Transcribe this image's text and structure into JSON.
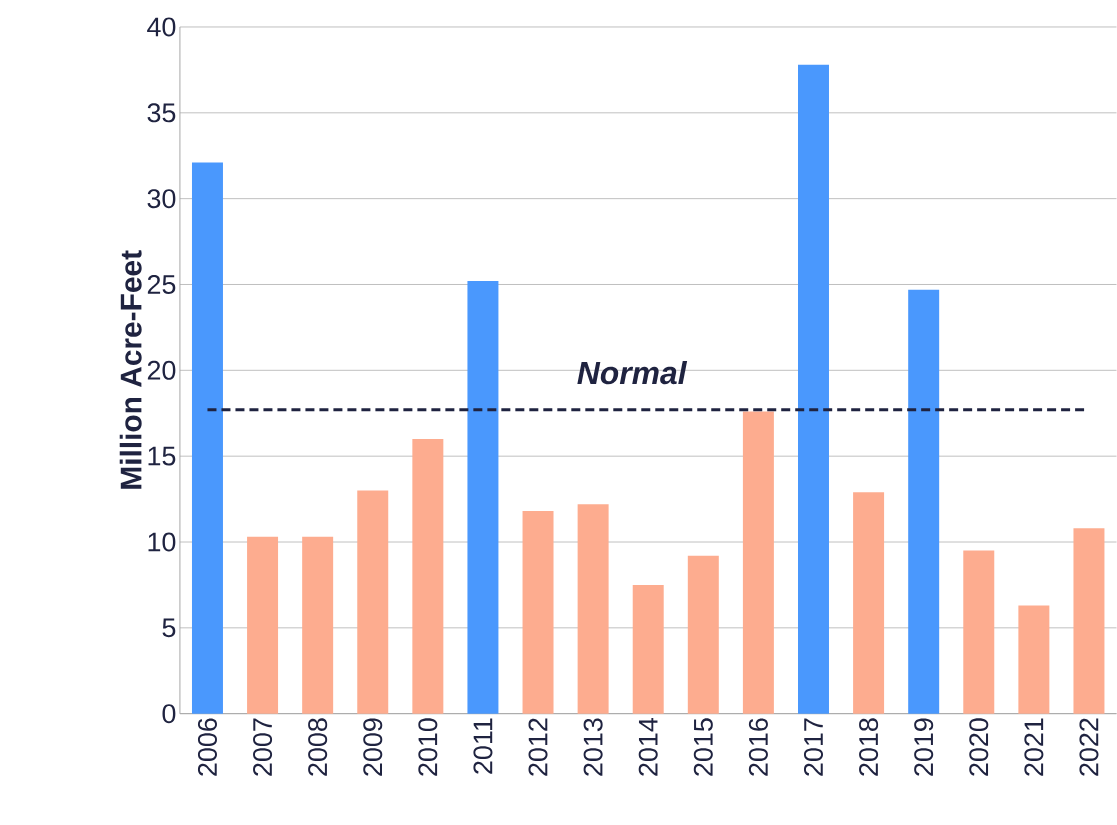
{
  "chart_data": {
    "type": "bar",
    "ylabel": "Million Acre-Feet",
    "categories": [
      "2006",
      "2007",
      "2008",
      "2009",
      "2010",
      "2011",
      "2012",
      "2013",
      "2014",
      "2015",
      "2016",
      "2017",
      "2018",
      "2019",
      "2020",
      "2021",
      "2022"
    ],
    "values": [
      32.1,
      10.3,
      10.3,
      13.0,
      16.0,
      25.2,
      11.8,
      12.2,
      7.5,
      9.2,
      17.6,
      37.8,
      12.9,
      24.7,
      9.5,
      6.3,
      10.8
    ],
    "colors": [
      "#4a98fd",
      "#fdac8f",
      "#fdac8f",
      "#fdac8f",
      "#fdac8f",
      "#4a98fd",
      "#fdac8f",
      "#fdac8f",
      "#fdac8f",
      "#fdac8f",
      "#fdac8f",
      "#4a98fd",
      "#fdac8f",
      "#4a98fd",
      "#fdac8f",
      "#fdac8f",
      "#fdac8f"
    ],
    "ylim": [
      0,
      40
    ],
    "yticks": [
      0,
      5,
      10,
      15,
      20,
      25,
      30,
      35,
      40
    ],
    "grid": "y",
    "ref_lines": [
      {
        "axis": "y",
        "value": 17.7,
        "label": "Normal",
        "color": "#1f2340",
        "line_style": "dashed"
      }
    ]
  }
}
